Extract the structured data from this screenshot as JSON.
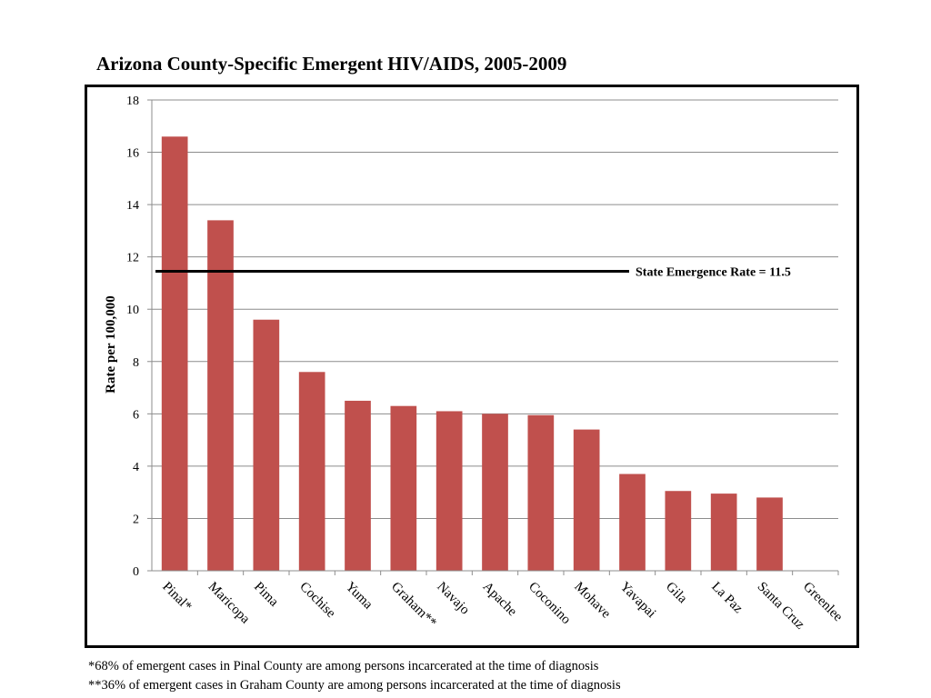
{
  "title": "Arizona County-Specific Emergent HIV/AIDS, 2005-2009",
  "chart_data": {
    "type": "bar",
    "title": "Arizona County-Specific Emergent HIV/AIDS, 2005-2009",
    "ylabel": "Rate per 100,000",
    "xlabel": "",
    "ylim": [
      0,
      18
    ],
    "yticks": [
      0,
      2,
      4,
      6,
      8,
      10,
      12,
      14,
      16,
      18
    ],
    "grid": true,
    "categories": [
      "Pinal*",
      "Maricopa",
      "Pima",
      "Cochise",
      "Yuma",
      "Graham**",
      "Navajo",
      "Apache",
      "Coconino",
      "Mohave",
      "Yavapai",
      "Gila",
      "La Paz",
      "Santa Cruz",
      "Greenlee"
    ],
    "values": [
      16.6,
      13.4,
      9.6,
      7.6,
      6.5,
      6.3,
      6.1,
      6.0,
      5.95,
      5.4,
      3.7,
      3.05,
      2.95,
      2.8,
      0
    ],
    "bar_color": "#c0504d",
    "reference_line": {
      "value": 11.45,
      "label": "State Emergence Rate = 11.5"
    }
  },
  "footnotes": [
    "*68% of emergent cases in Pinal County are among persons incarcerated at the time of diagnosis",
    "**36% of emergent cases in Graham County are among persons incarcerated at the time of diagnosis"
  ]
}
